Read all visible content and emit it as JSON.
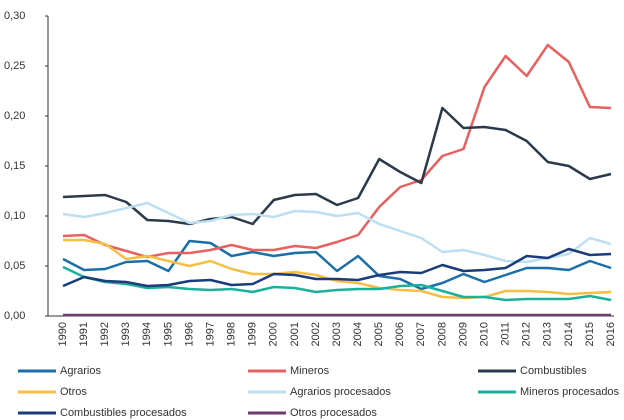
{
  "chart_data": {
    "type": "line",
    "categories": [
      "1990",
      "1991",
      "1992",
      "1993",
      "1994",
      "1995",
      "1996",
      "1997",
      "1998",
      "1999",
      "2000",
      "2001",
      "2002",
      "2003",
      "2004",
      "2005",
      "2006",
      "2007",
      "2008",
      "2009",
      "2010",
      "2011",
      "2012",
      "2013",
      "2014",
      "2015",
      "2016"
    ],
    "ylim": [
      0,
      0.3
    ],
    "yticks": [
      {
        "value": 0,
        "label": "0,00"
      },
      {
        "value": 0.05,
        "label": "0,05"
      },
      {
        "value": 0.1,
        "label": "0,10"
      },
      {
        "value": 0.15,
        "label": "0,15"
      },
      {
        "value": 0.2,
        "label": "0,20"
      },
      {
        "value": 0.25,
        "label": "0,25"
      },
      {
        "value": 0.3,
        "label": "0,30"
      }
    ],
    "grid": false,
    "legend": "bottom",
    "series": [
      {
        "name": "Agrarios",
        "color": "#1b6fa8",
        "values": [
          0.057,
          0.046,
          0.047,
          0.054,
          0.055,
          0.045,
          0.075,
          0.073,
          0.06,
          0.064,
          0.06,
          0.063,
          0.064,
          0.045,
          0.06,
          0.04,
          0.037,
          0.027,
          0.033,
          0.042,
          0.034,
          0.041,
          0.048,
          0.048,
          0.046,
          0.055,
          0.048
        ]
      },
      {
        "name": "Mineros",
        "color": "#e8605f",
        "values": [
          0.08,
          0.081,
          0.071,
          0.065,
          0.059,
          0.063,
          0.063,
          0.066,
          0.071,
          0.066,
          0.066,
          0.07,
          0.068,
          0.074,
          0.081,
          0.109,
          0.129,
          0.136,
          0.16,
          0.167,
          0.229,
          0.26,
          0.24,
          0.271,
          0.254,
          0.209,
          0.208
        ]
      },
      {
        "name": "Combustibles",
        "color": "#2b3a4a",
        "values": [
          0.119,
          0.12,
          0.121,
          0.114,
          0.096,
          0.095,
          0.092,
          0.097,
          0.099,
          0.092,
          0.116,
          0.121,
          0.122,
          0.111,
          0.118,
          0.157,
          0.144,
          0.133,
          0.208,
          0.188,
          0.189,
          0.186,
          0.175,
          0.154,
          0.15,
          0.137,
          0.142
        ]
      },
      {
        "name": "Otros",
        "color": "#f5be45",
        "values": [
          0.076,
          0.076,
          0.072,
          0.057,
          0.06,
          0.055,
          0.05,
          0.055,
          0.047,
          0.042,
          0.042,
          0.044,
          0.041,
          0.035,
          0.033,
          0.028,
          0.026,
          0.025,
          0.019,
          0.018,
          0.019,
          0.025,
          0.025,
          0.024,
          0.022,
          0.023,
          0.024
        ]
      },
      {
        "name": "Agrarios procesados",
        "color": "#bcdff2",
        "values": [
          0.102,
          0.099,
          0.103,
          0.108,
          0.113,
          0.103,
          0.093,
          0.095,
          0.101,
          0.102,
          0.099,
          0.105,
          0.104,
          0.1,
          0.103,
          0.092,
          0.085,
          0.078,
          0.064,
          0.066,
          0.061,
          0.055,
          0.054,
          0.058,
          0.062,
          0.078,
          0.072
        ]
      },
      {
        "name": "Mineros procesados",
        "color": "#1bb09a",
        "values": [
          0.049,
          0.039,
          0.034,
          0.032,
          0.028,
          0.029,
          0.027,
          0.026,
          0.027,
          0.024,
          0.029,
          0.028,
          0.024,
          0.026,
          0.027,
          0.027,
          0.03,
          0.031,
          0.025,
          0.019,
          0.019,
          0.016,
          0.017,
          0.017,
          0.017,
          0.02,
          0.016
        ]
      },
      {
        "name": "Combustibles procesados",
        "color": "#1a3c7a",
        "values": [
          0.03,
          0.039,
          0.035,
          0.034,
          0.03,
          0.031,
          0.035,
          0.036,
          0.031,
          0.032,
          0.042,
          0.041,
          0.037,
          0.037,
          0.036,
          0.041,
          0.044,
          0.043,
          0.051,
          0.045,
          0.046,
          0.048,
          0.06,
          0.058,
          0.067,
          0.061,
          0.062
        ]
      },
      {
        "name": "Otros procesados",
        "color": "#6a3d6a",
        "values": [
          0.001,
          0.001,
          0.001,
          0.001,
          0.001,
          0.001,
          0.001,
          0.001,
          0.001,
          0.001,
          0.001,
          0.001,
          0.001,
          0.001,
          0.001,
          0.001,
          0.001,
          0.001,
          0.001,
          0.001,
          0.001,
          0.001,
          0.001,
          0.001,
          0.001,
          0.001,
          0.001
        ]
      }
    ]
  }
}
